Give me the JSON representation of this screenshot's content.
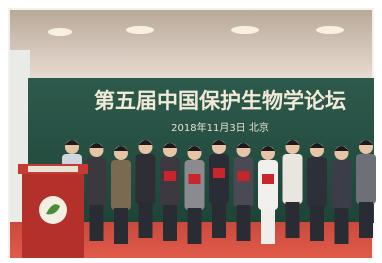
{
  "banner": {
    "title": "第五届中国保护生物学论坛",
    "subtitle": "2018年11月3日 北京"
  }
}
